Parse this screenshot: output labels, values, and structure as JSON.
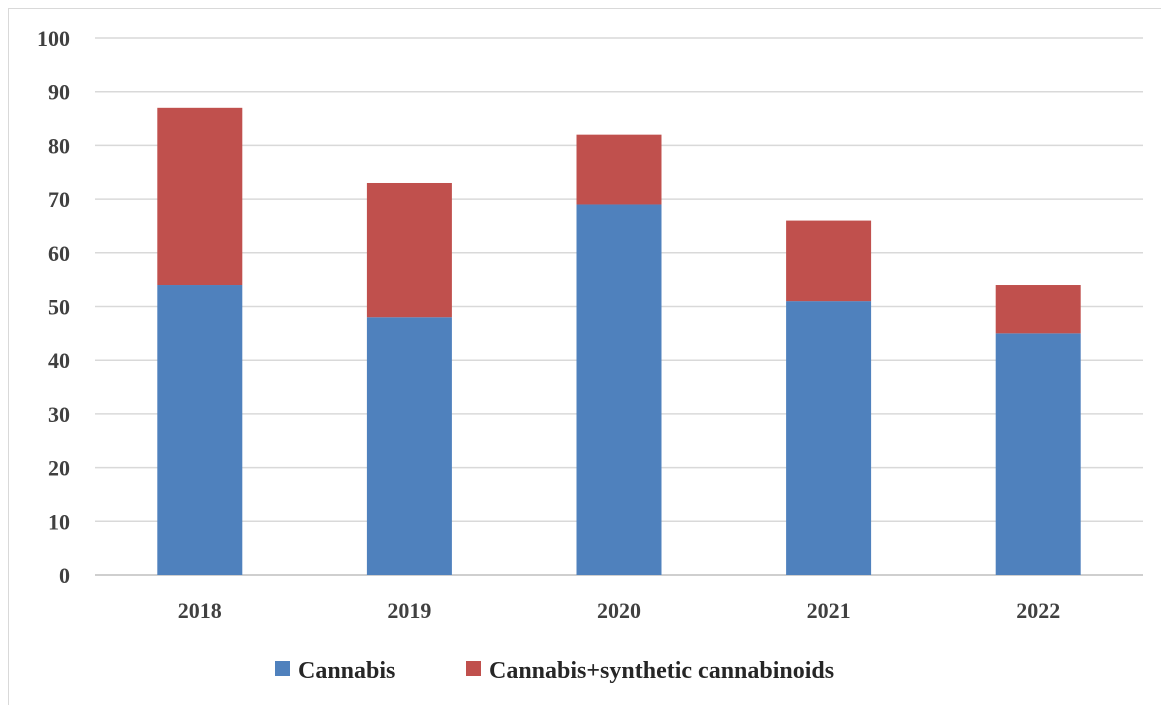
{
  "chart_data": {
    "type": "bar",
    "stacked": true,
    "categories": [
      "2018",
      "2019",
      "2020",
      "2021",
      "2022"
    ],
    "series": [
      {
        "name": "Cannabis",
        "values": [
          54,
          48,
          69,
          51,
          45
        ],
        "color": "#4f81bd"
      },
      {
        "name": "Cannabis+synthetic cannabinoids",
        "values": [
          33,
          25,
          13,
          15,
          9
        ],
        "color": "#c0504d"
      }
    ],
    "ylim": [
      0,
      100
    ],
    "yticks": [
      "0",
      "10",
      "20",
      "30",
      "40",
      "50",
      "60",
      "70",
      "80",
      "90",
      "100"
    ],
    "grid": true,
    "legend_position": "bottom"
  }
}
